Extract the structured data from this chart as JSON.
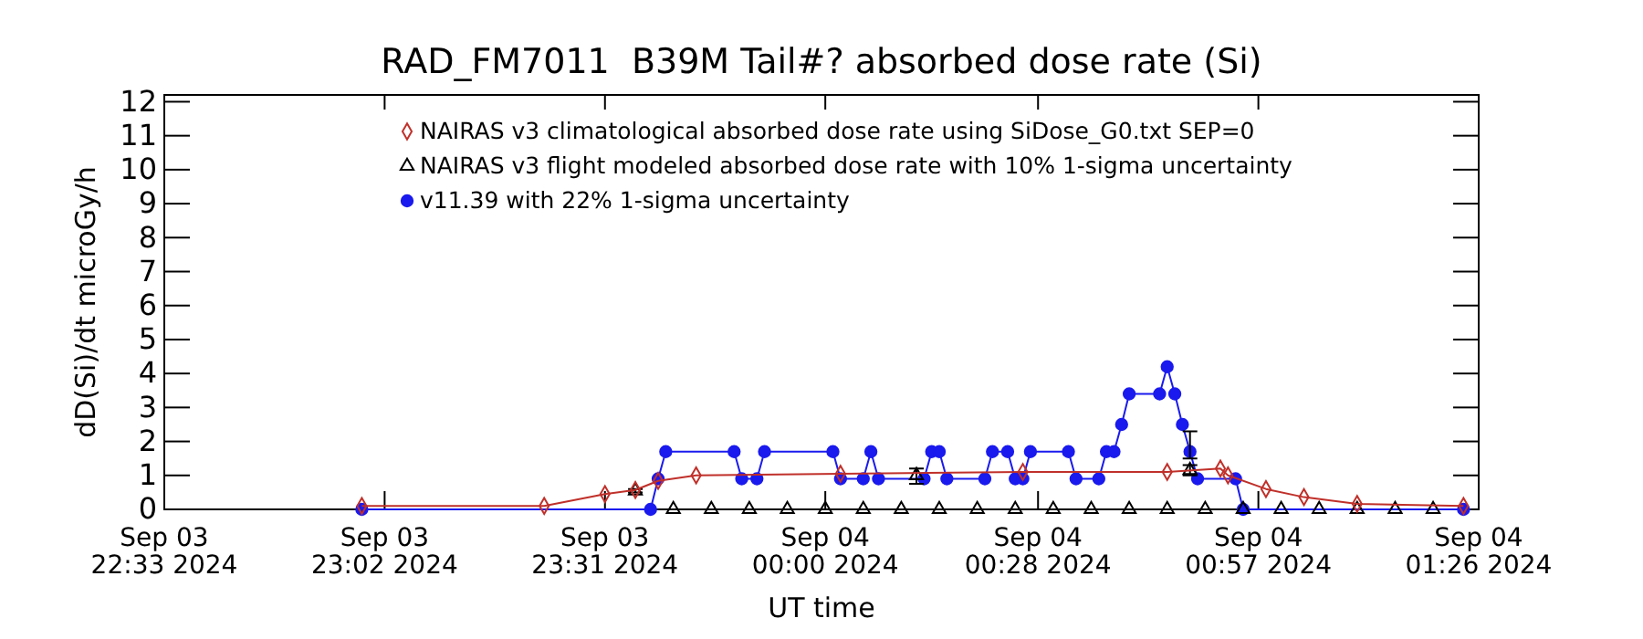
{
  "chart_data": {
    "type": "line",
    "title": "RAD_FM7011  B39M Tail#? absorbed dose rate (Si)",
    "xlabel": "UT time",
    "ylabel": "dD(Si)/dt microGy/h",
    "xlim": [
      "2024-09-03T22:33",
      "2024-09-04T01:26"
    ],
    "xticks": [
      {
        "value": "2024-09-03T22:33",
        "label": "Sep 03\n22:33 2024"
      },
      {
        "value": "2024-09-03T23:02",
        "label": "Sep 03\n23:02 2024"
      },
      {
        "value": "2024-09-03T23:31",
        "label": "Sep 03\n23:31 2024"
      },
      {
        "value": "2024-09-04T00:00",
        "label": "Sep 04\n00:00 2024"
      },
      {
        "value": "2024-09-04T00:28",
        "label": "Sep 04\n00:28 2024"
      },
      {
        "value": "2024-09-04T00:57",
        "label": "Sep 04\n00:57 2024"
      },
      {
        "value": "2024-09-04T01:26",
        "label": "Sep 04\n01:26 2024"
      }
    ],
    "ylim": [
      0,
      12.2
    ],
    "yticks": [
      0,
      1,
      2,
      3,
      4,
      5,
      6,
      7,
      8,
      9,
      10,
      11,
      12
    ],
    "grid": false,
    "legend": "top",
    "series": [
      {
        "name": "NAIRAS v3 climatological absorbed dose rate using SiDose_G0.txt SEP=0",
        "color": "#c0302a",
        "marker": "diamond",
        "x": [
          "2024-09-03T22:59",
          "2024-09-03T23:23",
          "2024-09-03T23:31",
          "2024-09-03T23:35",
          "2024-09-03T23:38",
          "2024-09-03T23:43",
          "2024-09-04T00:02",
          "2024-09-04T00:26",
          "2024-09-04T00:45",
          "2024-09-04T00:52",
          "2024-09-04T00:53",
          "2024-09-04T00:58",
          "2024-09-04T01:03",
          "2024-09-04T01:10",
          "2024-09-04T01:24"
        ],
        "values": [
          0.1,
          0.1,
          0.45,
          0.57,
          0.84,
          1.0,
          1.05,
          1.1,
          1.1,
          1.2,
          1.0,
          0.6,
          0.36,
          0.16,
          0.1
        ]
      },
      {
        "name": "NAIRAS v3 flight modeled absorbed dose rate with 10% 1-sigma uncertainty",
        "color": "#000000",
        "type": "scatter",
        "marker": "triangle",
        "x": [
          "2024-09-03T23:35",
          "2024-09-03T23:40",
          "2024-09-03T23:45",
          "2024-09-03T23:50",
          "2024-09-03T23:55",
          "2024-09-04T00:00",
          "2024-09-04T00:05",
          "2024-09-04T00:10",
          "2024-09-04T00:12",
          "2024-09-04T00:15",
          "2024-09-04T00:20",
          "2024-09-04T00:25",
          "2024-09-04T00:30",
          "2024-09-04T00:35",
          "2024-09-04T00:40",
          "2024-09-04T00:45",
          "2024-09-04T00:48",
          "2024-09-04T00:50",
          "2024-09-04T00:55",
          "2024-09-04T01:00",
          "2024-09-04T01:05",
          "2024-09-04T01:10",
          "2024-09-04T01:15",
          "2024-09-04T01:20"
        ],
        "values": [
          0.55,
          0,
          0,
          0,
          0,
          0,
          0,
          0,
          1.0,
          0,
          0,
          0,
          0,
          0,
          0,
          0,
          1.15,
          0,
          0,
          0,
          0,
          0,
          0,
          0
        ],
        "errors": [
          [
            0.5,
            0.6
          ],
          null,
          null,
          null,
          null,
          null,
          null,
          null,
          [
            0.75,
            1.2
          ],
          null,
          null,
          null,
          null,
          null,
          null,
          null,
          [
            1.0,
            1.3
          ],
          null,
          null,
          null,
          null,
          null,
          null,
          null
        ]
      },
      {
        "name": "v11.39 with 22% 1-sigma uncertainty",
        "color": "#1a1aee",
        "marker": "circle",
        "x": [
          "2024-09-03T22:59",
          "2024-09-03T23:37",
          "2024-09-03T23:38",
          "2024-09-03T23:39",
          "2024-09-03T23:48",
          "2024-09-03T23:49",
          "2024-09-03T23:51",
          "2024-09-03T23:52",
          "2024-09-04T00:01",
          "2024-09-04T00:02",
          "2024-09-04T00:05",
          "2024-09-04T00:06",
          "2024-09-04T00:07",
          "2024-09-04T00:13",
          "2024-09-04T00:14",
          "2024-09-04T00:15",
          "2024-09-04T00:16",
          "2024-09-04T00:21",
          "2024-09-04T00:22",
          "2024-09-04T00:24",
          "2024-09-04T00:25",
          "2024-09-04T00:26",
          "2024-09-04T00:27",
          "2024-09-04T00:32",
          "2024-09-04T00:33",
          "2024-09-04T00:36",
          "2024-09-04T00:37",
          "2024-09-04T00:38",
          "2024-09-04T00:39",
          "2024-09-04T00:40",
          "2024-09-04T00:44",
          "2024-09-04T00:45",
          "2024-09-04T00:46",
          "2024-09-04T00:47",
          "2024-09-04T00:48",
          "2024-09-04T00:49",
          "2024-09-04T00:54",
          "2024-09-04T00:55",
          "2024-09-04T01:24"
        ],
        "values": [
          0,
          0,
          0.9,
          1.7,
          1.7,
          0.9,
          0.9,
          1.7,
          1.7,
          0.9,
          0.9,
          1.7,
          0.9,
          0.9,
          1.7,
          1.7,
          0.9,
          0.9,
          1.7,
          1.7,
          0.9,
          0.9,
          1.7,
          1.7,
          0.9,
          0.9,
          1.7,
          1.7,
          2.5,
          3.4,
          3.4,
          4.2,
          3.4,
          2.5,
          1.7,
          0.9,
          0.9,
          0,
          0
        ],
        "errors": [
          null,
          null,
          null,
          null,
          null,
          null,
          null,
          null,
          null,
          null,
          null,
          null,
          null,
          null,
          null,
          null,
          null,
          null,
          null,
          null,
          null,
          null,
          null,
          null,
          null,
          null,
          null,
          null,
          null,
          null,
          null,
          null,
          null,
          null,
          [
            1.5,
            2.3
          ],
          null,
          null,
          null,
          null
        ]
      }
    ]
  }
}
